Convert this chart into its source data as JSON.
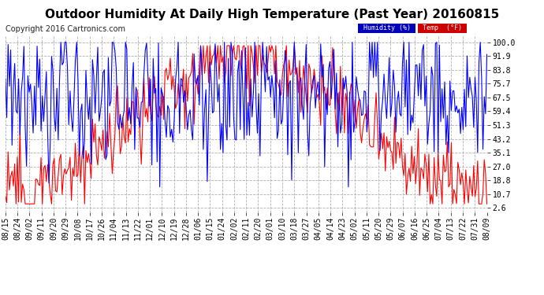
{
  "title": "Outdoor Humidity At Daily High Temperature (Past Year) 20160815",
  "copyright": "Copyright 2016 Cartronics.com",
  "background_color": "#ffffff",
  "plot_background": "#ffffff",
  "grid_color": "#b0b0b0",
  "y_ticks": [
    2.6,
    10.7,
    18.8,
    27.0,
    35.1,
    43.2,
    51.3,
    59.4,
    67.5,
    75.7,
    83.8,
    91.9,
    100.0
  ],
  "x_labels": [
    "08/15",
    "08/24",
    "09/02",
    "09/11",
    "09/20",
    "09/29",
    "10/08",
    "10/17",
    "10/26",
    "11/04",
    "11/13",
    "11/22",
    "12/01",
    "12/10",
    "12/19",
    "12/28",
    "01/06",
    "01/15",
    "01/24",
    "02/02",
    "02/11",
    "02/20",
    "03/01",
    "03/10",
    "03/18",
    "03/27",
    "04/05",
    "04/14",
    "04/23",
    "05/02",
    "05/11",
    "05/20",
    "05/29",
    "06/07",
    "06/16",
    "06/25",
    "07/04",
    "07/13",
    "07/22",
    "07/31",
    "08/09"
  ],
  "humidity_color": "#0000ff",
  "temp_color": "#ff0000",
  "title_fontsize": 11,
  "axis_label_fontsize": 7,
  "copyright_fontsize": 7,
  "ylim": [
    0,
    104
  ],
  "num_points": 366
}
